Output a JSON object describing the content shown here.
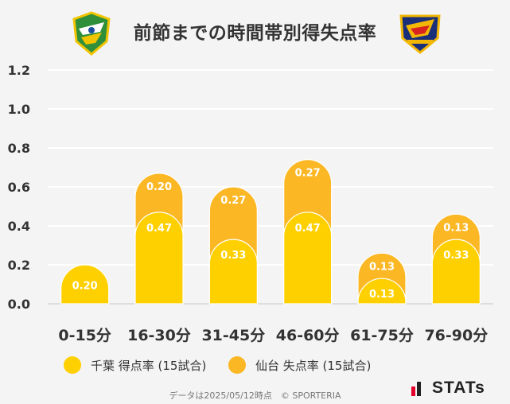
{
  "title": "前節までの時間帯別得失点率",
  "colors": {
    "chiba": "#ffd000",
    "sendai": "#fbb724",
    "grid": "#ffffff",
    "text": "#333333"
  },
  "chart_data": {
    "type": "bar",
    "stacked": true,
    "categories": [
      "0-15分",
      "16-30分",
      "31-45分",
      "46-60分",
      "61-75分",
      "76-90分"
    ],
    "series": [
      {
        "name": "千葉 得点率 (15試合)",
        "values": [
          0.2,
          0.47,
          0.33,
          0.47,
          0.13,
          0.33
        ],
        "labels": [
          "0.20",
          "0.47",
          "0.33",
          "0.47",
          "0.13",
          "0.33"
        ]
      },
      {
        "name": "仙台 失点率 (15試合)",
        "values": [
          0,
          0.2,
          0.27,
          0.27,
          0.13,
          0.13
        ],
        "labels": [
          "",
          "0.20",
          "0.27",
          "0.27",
          "0.13",
          "0.13"
        ]
      }
    ],
    "yticks": [
      "0.0",
      "0.2",
      "0.4",
      "0.6",
      "0.8",
      "1.0",
      "1.2"
    ],
    "ylim": [
      0,
      1.2
    ],
    "grid": true,
    "legend": "bottom"
  },
  "legend": {
    "chiba": "千葉 得点率 (15試合)",
    "sendai": "仙台 失点率 (15試合)"
  },
  "footer": {
    "source": "データは2025/05/12時点　© SPORTERIA",
    "brand": "STATs"
  },
  "icons": {
    "left_logo": "jef-united-chiba-emblem-icon",
    "right_logo": "vegalta-sendai-emblem-icon",
    "brand_mark": "stats-bars-icon"
  }
}
